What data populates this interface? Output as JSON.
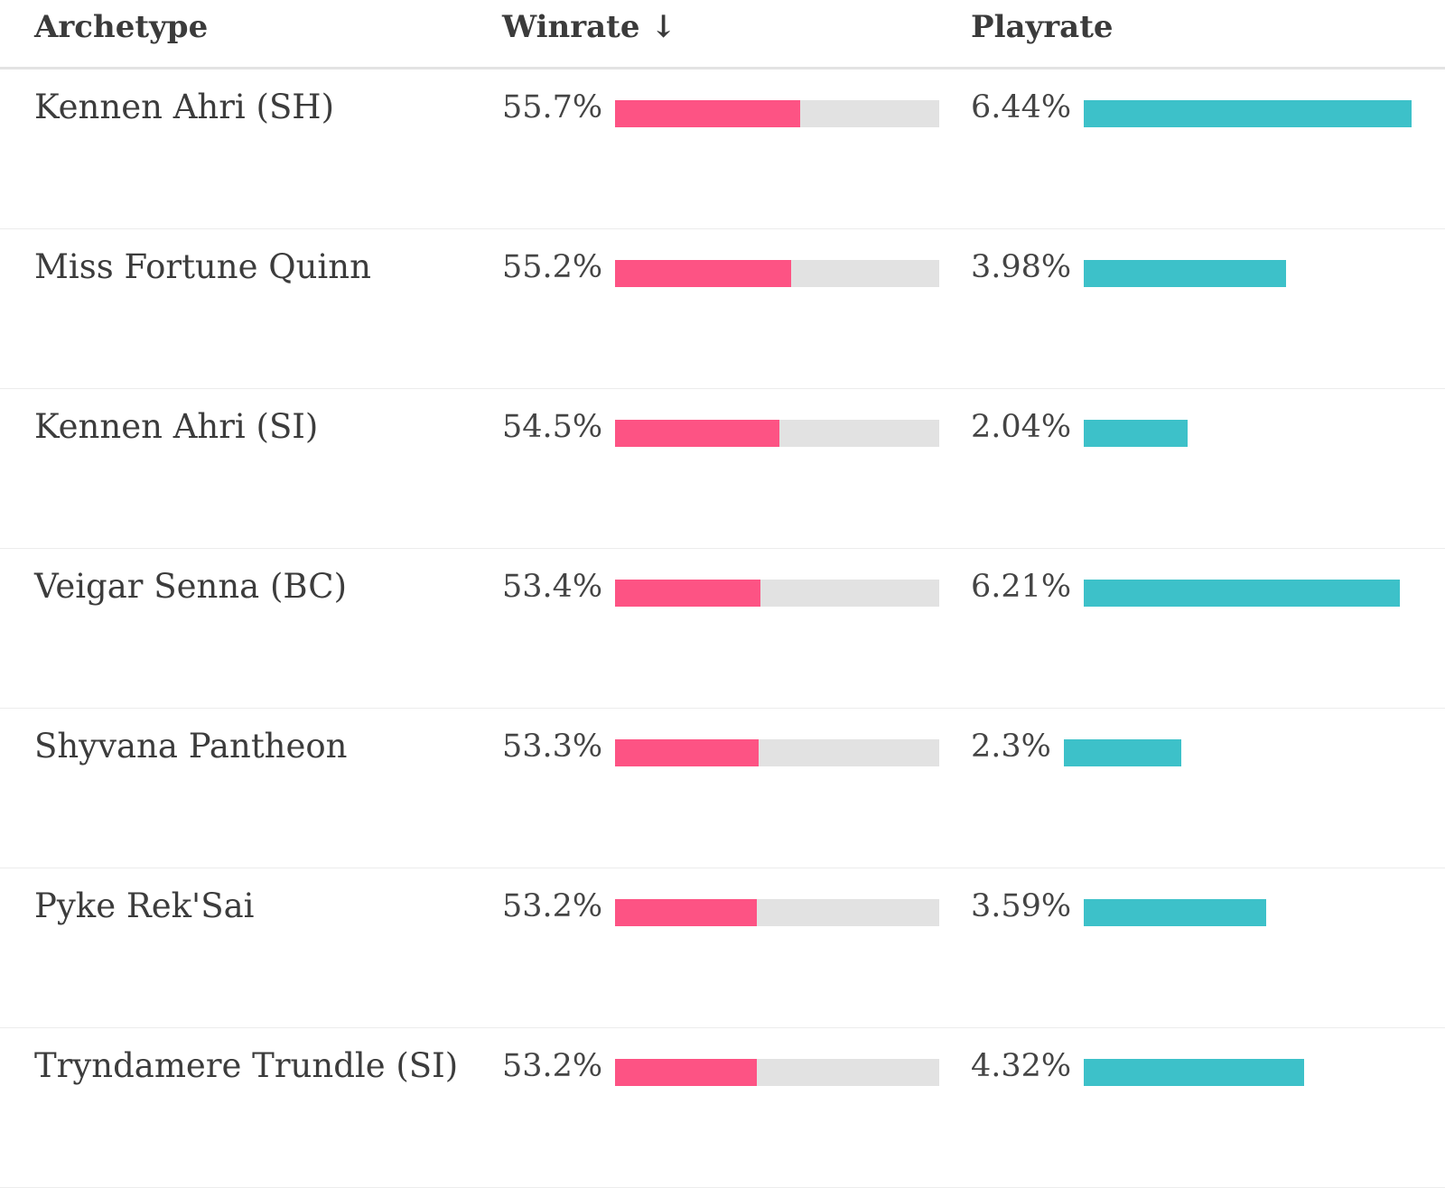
{
  "colors": {
    "winrate_fill": "#fd5384",
    "winrate_track": "#e2e2e2",
    "playrate_fill": "#3dc1c9",
    "text": "#3c3c3c"
  },
  "header": {
    "archetype": "Archetype",
    "winrate": "Winrate ↓",
    "playrate": "Playrate"
  },
  "rows": [
    {
      "name": "Kennen Ahri (SH)",
      "winrate": "55.7%",
      "playrate": "6.44%",
      "winrate_value": 55.7,
      "playrate_value": 6.44
    },
    {
      "name": "Miss Fortune Quinn",
      "winrate": "55.2%",
      "playrate": "3.98%",
      "winrate_value": 55.2,
      "playrate_value": 3.98
    },
    {
      "name": "Kennen Ahri (SI)",
      "winrate": "54.5%",
      "playrate": "2.04%",
      "winrate_value": 54.5,
      "playrate_value": 2.04
    },
    {
      "name": "Veigar Senna (BC)",
      "winrate": "53.4%",
      "playrate": "6.21%",
      "winrate_value": 53.4,
      "playrate_value": 6.21
    },
    {
      "name": "Shyvana Pantheon",
      "winrate": "53.3%",
      "playrate": "2.3%",
      "winrate_value": 53.3,
      "playrate_value": 2.3
    },
    {
      "name": "Pyke Rek'Sai",
      "winrate": "53.2%",
      "playrate": "3.59%",
      "winrate_value": 53.2,
      "playrate_value": 3.59
    },
    {
      "name": "Tryndamere Trundle (SI)",
      "winrate": "53.2%",
      "playrate": "4.32%",
      "winrate_value": 53.2,
      "playrate_value": 4.32
    }
  ]
}
